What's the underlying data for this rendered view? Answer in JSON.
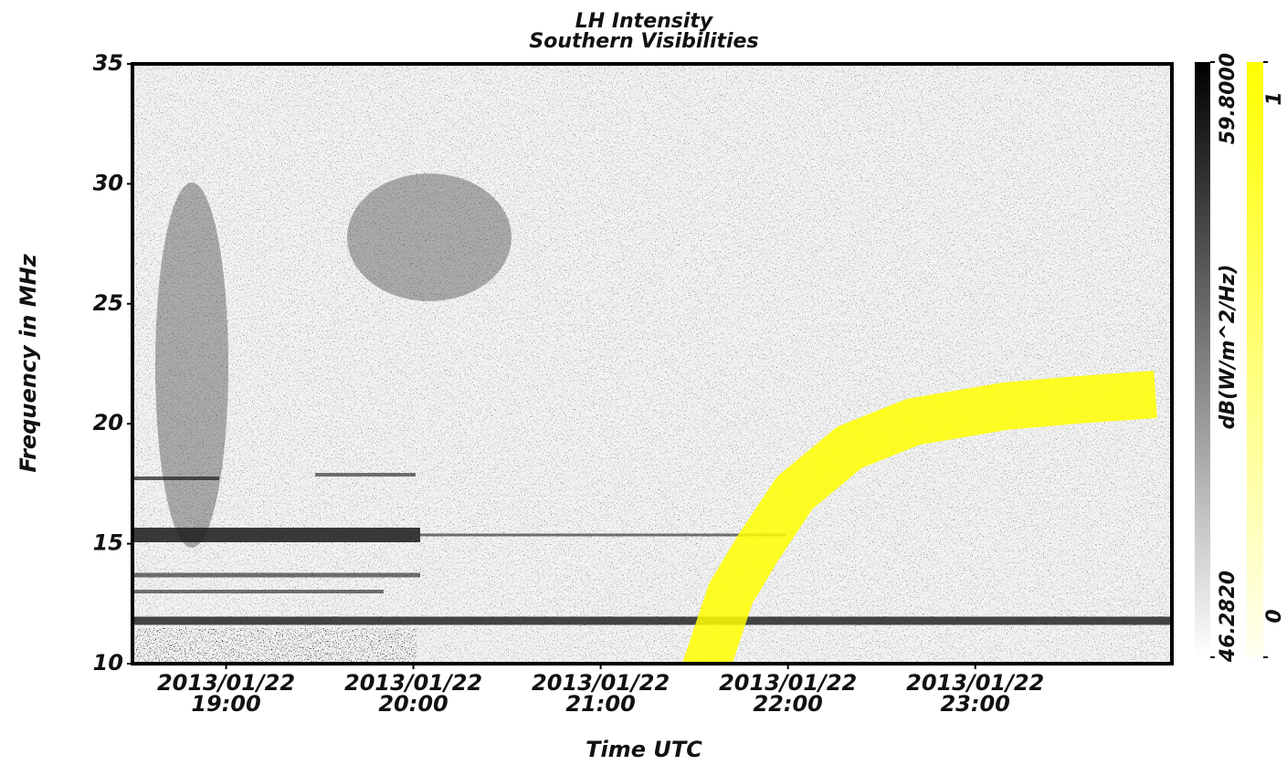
{
  "chart_data": {
    "type": "spectrogram",
    "title": "LH Intensity",
    "subtitle": "Southern Visibilities",
    "x_label": "Time UTC",
    "y_label": "Frequency in MHz",
    "xlim": [
      "2013-01-22T18:30",
      "2013-01-23T00:03"
    ],
    "xticks": [
      {
        "value": "2013-01-22T19:00",
        "label": "2013/01/22\n19:00"
      },
      {
        "value": "2013-01-22T20:00",
        "label": "2013/01/22\n20:00"
      },
      {
        "value": "2013-01-22T21:00",
        "label": "2013/01/22\n21:00"
      },
      {
        "value": "2013-01-22T22:00",
        "label": "2013/01/22\n22:00"
      },
      {
        "value": "2013-01-22T23:00",
        "label": "2013/01/22\n23:00"
      }
    ],
    "ylim": [
      10,
      35
    ],
    "yticks": [
      10,
      15,
      20,
      25,
      30,
      35
    ],
    "colorbar": {
      "label": "dB(W/m^2/Hz)",
      "lim": [
        46.282,
        59.8
      ],
      "ticks": [
        {
          "value": 46.282,
          "label": "46.2820"
        },
        {
          "value": 59.8,
          "label": "59.8000"
        }
      ],
      "colors": [
        "#ffffff",
        "#000000"
      ]
    },
    "overlay_colorbar": {
      "lim": [
        0,
        1
      ],
      "ticks": [
        0,
        1
      ],
      "colors": [
        "#fffff0",
        "#ffff00"
      ]
    }
  }
}
